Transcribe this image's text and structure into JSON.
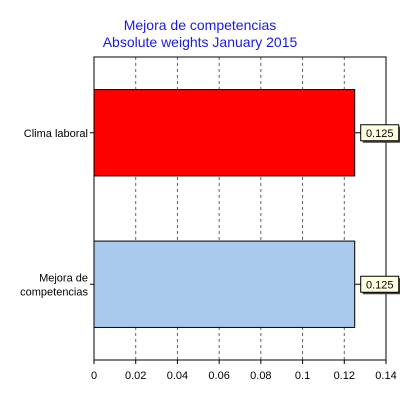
{
  "chart_data": {
    "type": "bar",
    "orientation": "horizontal",
    "title": "Mejora de competencias",
    "subtitle": "Absolute weights January 2015",
    "categories": [
      "Clima laboral",
      "Mejora de competencias"
    ],
    "values": [
      0.125,
      0.125
    ],
    "data_labels": [
      "0.125",
      "0.125"
    ],
    "xlim": [
      0,
      0.14
    ],
    "x_ticks": [
      "0",
      "0.02",
      "0.04",
      "0.06",
      "0.08",
      "0.1",
      "0.12",
      "0.14"
    ],
    "grid": "vertical dashed",
    "colors": [
      "#ff0000",
      "#a8c8ec"
    ],
    "title_color": "#1a1ae6",
    "label_box_fill": "#ffffe0"
  }
}
